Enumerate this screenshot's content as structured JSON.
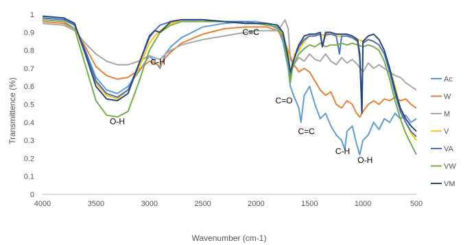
{
  "chart_data": {
    "type": "line",
    "xlabel": "Wavenumber (cm-1)",
    "ylabel": "Transmittence (%)",
    "xlim": [
      4000,
      500
    ],
    "ylim": [
      0,
      1
    ],
    "x_reversed": true,
    "xticks": [
      "4000",
      "3500",
      "3000",
      "2500",
      "2000",
      "1500",
      "1000",
      "500"
    ],
    "yticks": [
      "0",
      "0.1",
      "0.2",
      "0.3",
      "0.4",
      "0.5",
      "0.6",
      "0.7",
      "0.8",
      "0.9",
      "1"
    ],
    "grid": false,
    "legend_position": "right",
    "annotations": [
      {
        "text": "O-H",
        "x": 3300,
        "y": 0.39
      },
      {
        "text": "C-H",
        "x": 2920,
        "y": 0.72
      },
      {
        "text": "C≡C",
        "x": 2050,
        "y": 0.885
      },
      {
        "text": "C=O",
        "x": 1740,
        "y": 0.505
      },
      {
        "text": "C=C",
        "x": 1530,
        "y": 0.335
      },
      {
        "text": "C-H",
        "x": 1190,
        "y": 0.225
      },
      {
        "text": "O-H",
        "x": 980,
        "y": 0.175
      }
    ],
    "series": [
      {
        "name": "Ac",
        "color": "#5B9BD5",
        "x": [
          4000,
          3800,
          3700,
          3600,
          3500,
          3400,
          3300,
          3200,
          3100,
          3000,
          2950,
          2900,
          2850,
          2800,
          2700,
          2500,
          2300,
          2100,
          2000,
          1900,
          1800,
          1750,
          1700,
          1680,
          1650,
          1600,
          1580,
          1550,
          1500,
          1450,
          1400,
          1350,
          1300,
          1250,
          1200,
          1170,
          1150,
          1100,
          1060,
          1030,
          1000,
          950,
          900,
          850,
          800,
          750,
          700,
          650,
          600,
          550,
          500
        ],
        "y": [
          0.98,
          0.97,
          0.94,
          0.8,
          0.65,
          0.58,
          0.56,
          0.6,
          0.68,
          0.77,
          0.74,
          0.7,
          0.78,
          0.82,
          0.87,
          0.93,
          0.95,
          0.96,
          0.96,
          0.95,
          0.92,
          0.85,
          0.7,
          0.6,
          0.55,
          0.48,
          0.4,
          0.55,
          0.6,
          0.5,
          0.42,
          0.45,
          0.38,
          0.33,
          0.3,
          0.25,
          0.35,
          0.38,
          0.28,
          0.22,
          0.3,
          0.33,
          0.4,
          0.36,
          0.42,
          0.4,
          0.45,
          0.42,
          0.44,
          0.4,
          0.42
        ]
      },
      {
        "name": "W",
        "color": "#ED7D31",
        "x": [
          4000,
          3800,
          3700,
          3600,
          3500,
          3400,
          3300,
          3200,
          3100,
          3000,
          2950,
          2900,
          2850,
          2800,
          2700,
          2500,
          2300,
          2100,
          2000,
          1900,
          1800,
          1750,
          1700,
          1650,
          1620,
          1600,
          1550,
          1500,
          1450,
          1400,
          1350,
          1300,
          1250,
          1200,
          1150,
          1100,
          1060,
          1030,
          1000,
          950,
          900,
          850,
          800,
          750,
          700,
          650,
          600,
          550,
          500
        ],
        "y": [
          0.96,
          0.95,
          0.92,
          0.82,
          0.71,
          0.66,
          0.64,
          0.65,
          0.69,
          0.74,
          0.73,
          0.71,
          0.76,
          0.79,
          0.84,
          0.89,
          0.92,
          0.93,
          0.93,
          0.93,
          0.91,
          0.87,
          0.8,
          0.72,
          0.7,
          0.68,
          0.7,
          0.68,
          0.63,
          0.58,
          0.55,
          0.57,
          0.5,
          0.48,
          0.52,
          0.5,
          0.45,
          0.43,
          0.46,
          0.5,
          0.52,
          0.5,
          0.53,
          0.52,
          0.54,
          0.52,
          0.53,
          0.5,
          0.48
        ]
      },
      {
        "name": "M",
        "color": "#A5A5A5",
        "x": [
          4000,
          3800,
          3700,
          3600,
          3500,
          3400,
          3300,
          3200,
          3100,
          3000,
          2950,
          2900,
          2850,
          2800,
          2700,
          2500,
          2300,
          2200,
          2100,
          2000,
          1900,
          1800,
          1760,
          1730,
          1700,
          1680,
          1650,
          1600,
          1550,
          1500,
          1450,
          1400,
          1350,
          1300,
          1250,
          1200,
          1150,
          1100,
          1050,
          1000,
          950,
          900,
          850,
          800,
          750,
          700,
          650,
          600,
          550,
          500
        ],
        "y": [
          0.95,
          0.94,
          0.91,
          0.84,
          0.78,
          0.74,
          0.72,
          0.72,
          0.74,
          0.77,
          0.76,
          0.75,
          0.78,
          0.8,
          0.83,
          0.86,
          0.88,
          0.89,
          0.9,
          0.91,
          0.91,
          0.91,
          0.94,
          0.97,
          0.92,
          0.75,
          0.72,
          0.76,
          0.74,
          0.78,
          0.75,
          0.74,
          0.78,
          0.74,
          0.72,
          0.76,
          0.73,
          0.75,
          0.72,
          0.68,
          0.73,
          0.7,
          0.72,
          0.7,
          0.68,
          0.66,
          0.65,
          0.62,
          0.6,
          0.58
        ]
      },
      {
        "name": "V",
        "color": "#FFC000",
        "x": [
          4000,
          3800,
          3700,
          3600,
          3500,
          3400,
          3300,
          3200,
          3100,
          3000,
          2950,
          2900,
          2850,
          2800,
          2700,
          2500,
          2300,
          2100,
          2000,
          1900,
          1800,
          1750,
          1700,
          1680,
          1660,
          1640,
          1600,
          1550,
          1500,
          1450,
          1400,
          1350,
          1300,
          1250,
          1200,
          1150,
          1100,
          1050,
          1000,
          950,
          900,
          850,
          800,
          750,
          700,
          650,
          600,
          550,
          500
        ],
        "y": [
          0.98,
          0.97,
          0.94,
          0.78,
          0.62,
          0.55,
          0.53,
          0.58,
          0.7,
          0.84,
          0.88,
          0.91,
          0.93,
          0.95,
          0.97,
          0.97,
          0.96,
          0.96,
          0.95,
          0.95,
          0.94,
          0.9,
          0.78,
          0.65,
          0.72,
          0.78,
          0.8,
          0.85,
          0.88,
          0.88,
          0.89,
          0.88,
          0.89,
          0.88,
          0.88,
          0.88,
          0.87,
          0.86,
          0.85,
          0.86,
          0.85,
          0.83,
          0.78,
          0.7,
          0.6,
          0.48,
          0.4,
          0.34,
          0.3
        ]
      },
      {
        "name": "VA",
        "color": "#4472C4",
        "x": [
          4000,
          3800,
          3700,
          3600,
          3500,
          3400,
          3300,
          3200,
          3100,
          3000,
          2950,
          2900,
          2850,
          2800,
          2700,
          2500,
          2300,
          2100,
          2000,
          1900,
          1800,
          1750,
          1700,
          1680,
          1660,
          1620,
          1600,
          1550,
          1500,
          1450,
          1400,
          1380,
          1350,
          1300,
          1250,
          1220,
          1200,
          1150,
          1100,
          1050,
          1030,
          1010,
          1000,
          950,
          900,
          850,
          800,
          750,
          700,
          650,
          600,
          550,
          500
        ],
        "y": [
          0.98,
          0.97,
          0.94,
          0.8,
          0.63,
          0.56,
          0.54,
          0.58,
          0.72,
          0.87,
          0.91,
          0.94,
          0.95,
          0.96,
          0.97,
          0.97,
          0.96,
          0.96,
          0.95,
          0.95,
          0.94,
          0.9,
          0.75,
          0.66,
          0.73,
          0.79,
          0.82,
          0.86,
          0.88,
          0.88,
          0.89,
          0.82,
          0.89,
          0.89,
          0.88,
          0.78,
          0.88,
          0.88,
          0.87,
          0.85,
          0.75,
          0.46,
          0.84,
          0.86,
          0.85,
          0.83,
          0.78,
          0.68,
          0.56,
          0.46,
          0.4,
          0.35,
          0.32
        ]
      },
      {
        "name": "VW",
        "color": "#70AD47",
        "x": [
          4000,
          3800,
          3700,
          3600,
          3500,
          3400,
          3300,
          3200,
          3100,
          3000,
          2950,
          2900,
          2850,
          2800,
          2700,
          2500,
          2300,
          2100,
          2000,
          1900,
          1800,
          1750,
          1700,
          1680,
          1660,
          1620,
          1600,
          1550,
          1500,
          1450,
          1400,
          1350,
          1300,
          1250,
          1200,
          1150,
          1100,
          1050,
          1000,
          950,
          900,
          850,
          800,
          750,
          700,
          650,
          600,
          550,
          500
        ],
        "y": [
          0.97,
          0.96,
          0.92,
          0.72,
          0.52,
          0.44,
          0.43,
          0.46,
          0.62,
          0.8,
          0.85,
          0.9,
          0.92,
          0.94,
          0.96,
          0.96,
          0.96,
          0.95,
          0.95,
          0.94,
          0.93,
          0.88,
          0.72,
          0.62,
          0.7,
          0.76,
          0.78,
          0.81,
          0.83,
          0.82,
          0.84,
          0.82,
          0.83,
          0.83,
          0.84,
          0.83,
          0.84,
          0.83,
          0.82,
          0.83,
          0.82,
          0.8,
          0.74,
          0.64,
          0.52,
          0.42,
          0.34,
          0.28,
          0.22
        ]
      },
      {
        "name": "VM",
        "color": "#264478",
        "x": [
          4000,
          3800,
          3700,
          3600,
          3500,
          3400,
          3300,
          3200,
          3100,
          3000,
          2950,
          2900,
          2850,
          2800,
          2700,
          2500,
          2300,
          2100,
          2000,
          1900,
          1800,
          1750,
          1700,
          1680,
          1660,
          1620,
          1600,
          1550,
          1500,
          1450,
          1400,
          1380,
          1350,
          1300,
          1250,
          1200,
          1150,
          1100,
          1050,
          1030,
          1010,
          1000,
          950,
          900,
          850,
          800,
          750,
          700,
          650,
          600,
          550,
          500
        ],
        "y": [
          0.99,
          0.98,
          0.95,
          0.78,
          0.6,
          0.53,
          0.52,
          0.56,
          0.72,
          0.88,
          0.91,
          0.9,
          0.93,
          0.96,
          0.97,
          0.97,
          0.96,
          0.95,
          0.95,
          0.95,
          0.94,
          0.9,
          0.76,
          0.68,
          0.72,
          0.8,
          0.83,
          0.88,
          0.89,
          0.89,
          0.9,
          0.82,
          0.9,
          0.9,
          0.89,
          0.89,
          0.89,
          0.88,
          0.86,
          0.78,
          0.45,
          0.85,
          0.88,
          0.89,
          0.86,
          0.8,
          0.7,
          0.58,
          0.48,
          0.42,
          0.38,
          0.35
        ]
      }
    ]
  }
}
